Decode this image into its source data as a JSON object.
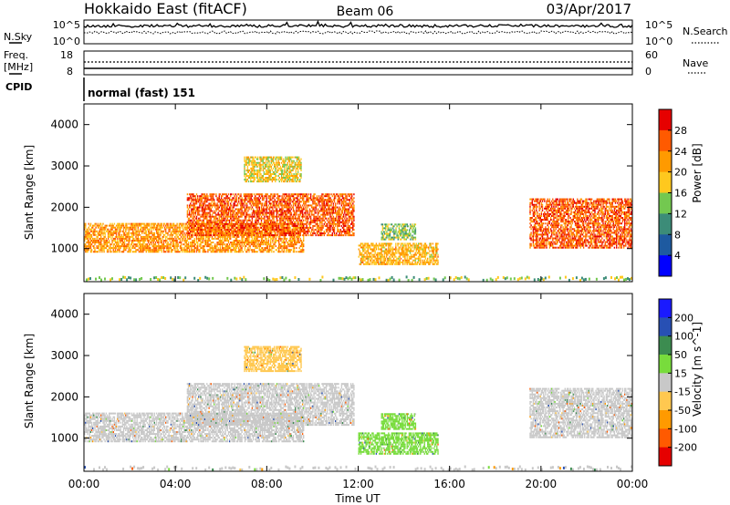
{
  "header": {
    "station": "Hokkaido East (fitACF)",
    "beam": "Beam 06",
    "date": "03/Apr/2017"
  },
  "top_panels": {
    "nsky_label": "N.Sky",
    "nsky_ticks": [
      "10^5",
      "10^0"
    ],
    "nsearch_label": "N.Search",
    "nsearch_ticks": [
      "10^5",
      "10^0"
    ],
    "freq_label": "Freq.",
    "freq_unit": "[MHz]",
    "freq_ticks": [
      "18",
      "8"
    ],
    "nave_label": "Nave",
    "nave_ticks": [
      "60",
      "0"
    ],
    "cpid_label": "CPID",
    "cpid_value": "normal (fast) 151"
  },
  "chart_data": [
    {
      "type": "heatmap",
      "title": "",
      "xlabel": "",
      "ylabel": "Slant Range [km]",
      "xlim": [
        0,
        24
      ],
      "ylim": [
        200,
        4500
      ],
      "x_ticks": [
        0,
        4,
        8,
        12,
        16,
        20,
        24
      ],
      "y_ticks": [
        1000,
        2000,
        3000,
        4000
      ],
      "colorbar": {
        "label": "Power [dB]",
        "ticks": [
          "28",
          "24",
          "20",
          "16",
          "12",
          "8",
          "4"
        ],
        "colors": [
          "#e60000",
          "#ff5a00",
          "#ff9a00",
          "#ffc81e",
          "#73c850",
          "#3c8c78",
          "#1e5aa0",
          "#0000ff"
        ]
      },
      "regions": [
        {
          "t0": 0.0,
          "t1": 9.6,
          "r0": 900,
          "r1": 1600,
          "level": 20
        },
        {
          "t0": 4.5,
          "t1": 11.8,
          "r0": 1300,
          "r1": 2300,
          "level": 24
        },
        {
          "t0": 7.0,
          "t1": 9.5,
          "r0": 2600,
          "r1": 3200,
          "level": 16
        },
        {
          "t0": 12.0,
          "t1": 15.5,
          "r0": 600,
          "r1": 1100,
          "level": 18
        },
        {
          "t0": 13.0,
          "t1": 14.5,
          "r0": 1200,
          "r1": 1600,
          "level": 12
        },
        {
          "t0": 19.5,
          "t1": 24.0,
          "r0": 1000,
          "r1": 2200,
          "level": 24
        }
      ]
    },
    {
      "type": "heatmap",
      "title": "",
      "xlabel": "Time UT",
      "ylabel": "Slant Range [km]",
      "xlim": [
        0,
        24
      ],
      "ylim": [
        200,
        4500
      ],
      "x_ticks": [
        0,
        4,
        8,
        12,
        16,
        20,
        24
      ],
      "x_tick_labels": [
        "00:00",
        "04:00",
        "08:00",
        "12:00",
        "16:00",
        "20:00",
        "00:00"
      ],
      "y_ticks": [
        1000,
        2000,
        3000,
        4000
      ],
      "colorbar": {
        "label": "Velocity [m s^-1]",
        "ticks": [
          "200",
          "100",
          "50",
          "15",
          "-15",
          "-50",
          "-100",
          "-200"
        ],
        "colors": [
          "#1a1aff",
          "#2850b4",
          "#3c8c50",
          "#78dc3c",
          "#c8c8c8",
          "#ffc850",
          "#ff9a00",
          "#ff5a00",
          "#e60000"
        ]
      },
      "regions": [
        {
          "t0": 0.0,
          "t1": 9.6,
          "r0": 900,
          "r1": 1600,
          "level": 0
        },
        {
          "t0": 4.5,
          "t1": 11.8,
          "r0": 1300,
          "r1": 2300,
          "level": 0
        },
        {
          "t0": 7.0,
          "t1": 9.5,
          "r0": 2600,
          "r1": 3200,
          "level": -30
        },
        {
          "t0": 12.0,
          "t1": 15.5,
          "r0": 600,
          "r1": 1100,
          "level": 30
        },
        {
          "t0": 13.0,
          "t1": 14.5,
          "r0": 1200,
          "r1": 1600,
          "level": 30
        },
        {
          "t0": 19.5,
          "t1": 24.0,
          "r0": 1000,
          "r1": 2200,
          "level": 0
        }
      ]
    }
  ]
}
